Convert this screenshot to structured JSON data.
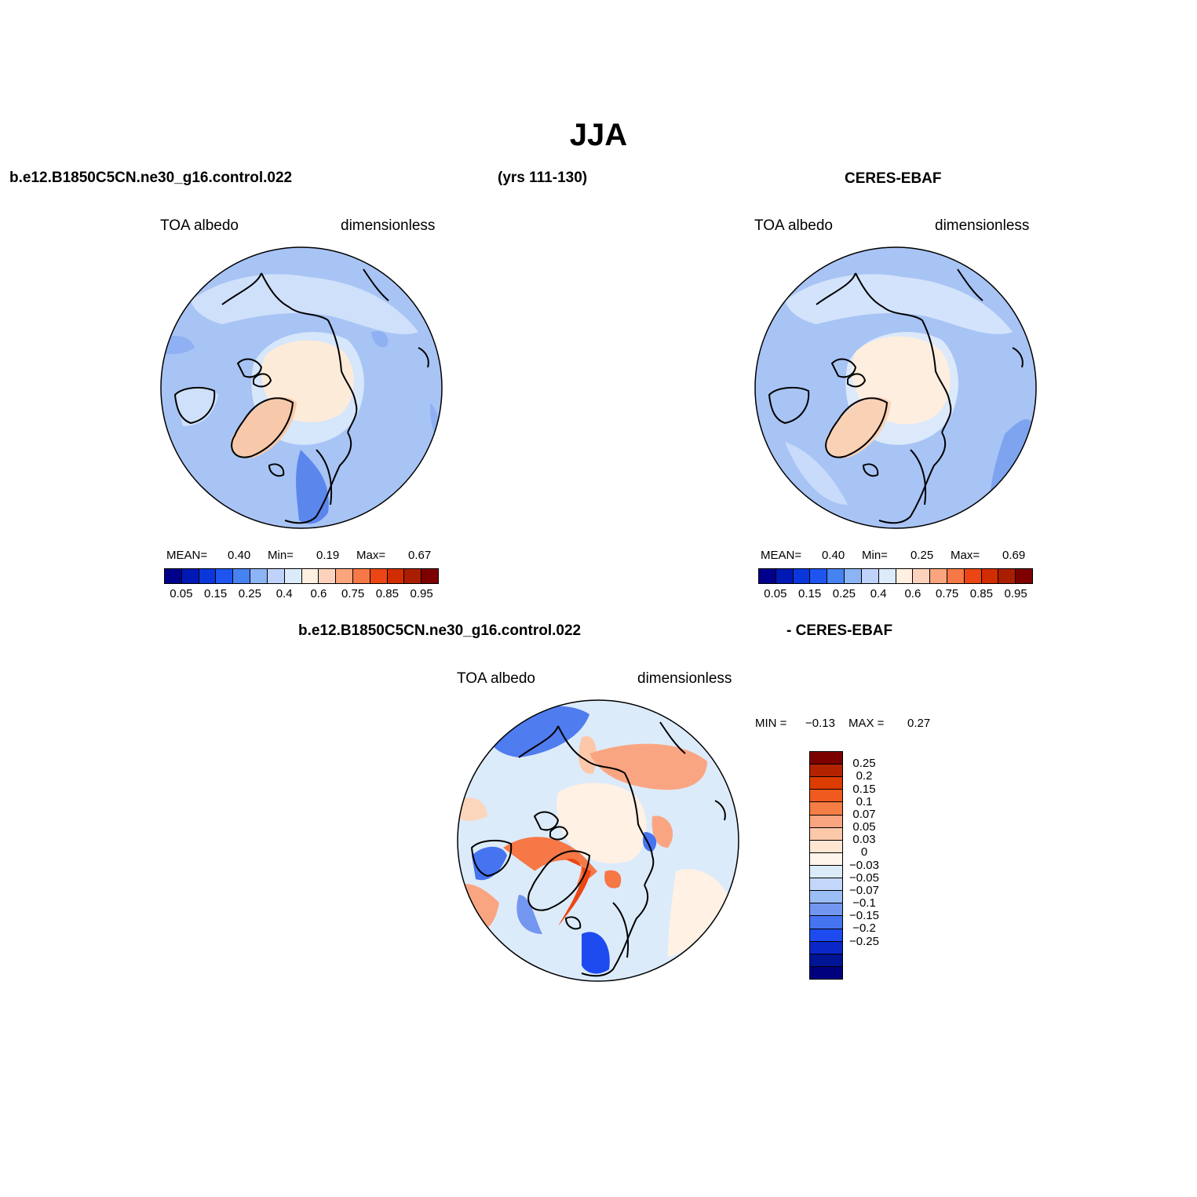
{
  "page": {
    "title": "JJA",
    "top_left_case": "b.e12.B1850C5CN.ne30_g16.control.022",
    "years": "(yrs 111-130)",
    "top_right_case": "CERES-EBAF",
    "diff_case_left": "b.e12.B1850C5CN.ne30_g16.control.022",
    "diff_case_right": "- CERES-EBAF"
  },
  "panels": [
    {
      "variable": "TOA  albedo",
      "units": "dimensionless",
      "stats": {
        "mean_label": "MEAN=",
        "mean": "0.40",
        "min_label": "Min=",
        "min": "0.19",
        "max_label": "Max=",
        "max": "0.67"
      }
    },
    {
      "variable": "TOA  albedo",
      "units": "dimensionless",
      "stats": {
        "mean_label": "MEAN=",
        "mean": "0.40",
        "min_label": "Min=",
        "min": "0.25",
        "max_label": "Max=",
        "max": "0.69"
      }
    },
    {
      "variable": "TOA  albedo",
      "units": "dimensionless",
      "stats": {
        "min_label": "MIN =",
        "min": "−0.13",
        "max_label": "MAX =",
        "max": "0.27"
      }
    }
  ],
  "colorbar_abs": {
    "colors": [
      "#00008c",
      "#0019b4",
      "#0a37dc",
      "#1e55f0",
      "#4682f0",
      "#8cb4f5",
      "#bed2fa",
      "#dcebfa",
      "#fff0e1",
      "#fcd2bc",
      "#faa57d",
      "#f57846",
      "#eb4614",
      "#d22d00",
      "#aa1e00",
      "#7d0000"
    ],
    "labels": [
      "0.05",
      "0.15",
      "0.25",
      "0.4",
      "0.6",
      "0.75",
      "0.85",
      "0.95"
    ]
  },
  "colorbar_diff": {
    "colors": [
      "#7d0000",
      "#b42300",
      "#dc3c00",
      "#f05a1e",
      "#f57d46",
      "#faa582",
      "#fcc8aa",
      "#ffe6d2",
      "#fff5eb",
      "#dcebfa",
      "#c3d7fa",
      "#9bbef5",
      "#7396f0",
      "#4673f0",
      "#1e4bf0",
      "#0a28c8",
      "#001496",
      "#00007d"
    ],
    "labels": [
      "0.25",
      "0.2",
      "0.15",
      "0.1",
      "0.07",
      "0.05",
      "0.03",
      "0",
      "−0.03",
      "−0.05",
      "−0.07",
      "−0.1",
      "−0.15",
      "−0.2",
      "−0.25"
    ]
  }
}
